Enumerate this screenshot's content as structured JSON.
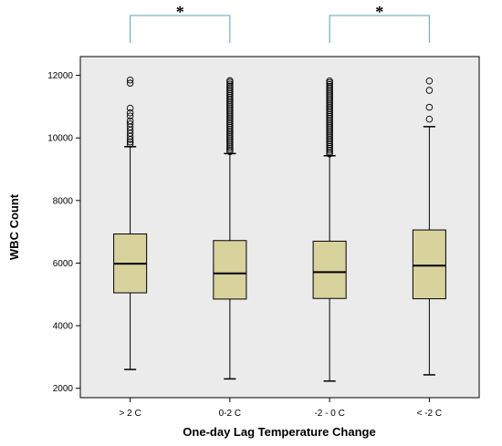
{
  "chart_data": {
    "type": "boxplot",
    "xlabel": "One-day Lag Temperature Change",
    "ylabel": "WBC Count",
    "ylim": [
      1700,
      12600
    ],
    "yticks": [
      2000,
      4000,
      6000,
      8000,
      10000,
      12000
    ],
    "ytick_labels": [
      "2000",
      "4000",
      "6000",
      "8000",
      "10000",
      "12000"
    ],
    "categories": [
      "> 2 C",
      "0-2 C",
      "-2 - 0 C",
      "< -2 C"
    ],
    "boxes": [
      {
        "category": "> 2 C",
        "whisker_low": 2600,
        "q1": 5050,
        "median": 5980,
        "q3": 6930,
        "whisker_high": 9720,
        "outliers": [
          9800,
          9870,
          9950,
          10050,
          10150,
          10250,
          10350,
          10450,
          10550,
          10700,
          10800,
          10950,
          11750,
          11850
        ]
      },
      {
        "category": "0-2 C",
        "whisker_low": 2300,
        "q1": 4850,
        "median": 5670,
        "q3": 6720,
        "whisker_high": 9500,
        "outliers": [
          9560,
          9620,
          9680,
          9740,
          9800,
          9860,
          9920,
          9980,
          10040,
          10100,
          10160,
          10220,
          10280,
          10340,
          10400,
          10460,
          10520,
          10580,
          10640,
          10700,
          10760,
          10820,
          10880,
          10940,
          11000,
          11060,
          11120,
          11180,
          11240,
          11300,
          11360,
          11420,
          11480,
          11540,
          11600,
          11660,
          11720,
          11780,
          11830
        ]
      },
      {
        "category": "-2 - 0 C",
        "whisker_low": 2230,
        "q1": 4870,
        "median": 5710,
        "q3": 6700,
        "whisker_high": 9430,
        "outliers": [
          9490,
          9550,
          9610,
          9670,
          9730,
          9790,
          9850,
          9910,
          9970,
          10030,
          10090,
          10150,
          10210,
          10270,
          10330,
          10390,
          10450,
          10510,
          10570,
          10630,
          10690,
          10750,
          10810,
          10870,
          10930,
          10990,
          11050,
          11110,
          11170,
          11230,
          11290,
          11350,
          11410,
          11470,
          11530,
          11590,
          11650,
          11710,
          11770,
          11820
        ]
      },
      {
        "category": "< -2 C",
        "whisker_low": 2430,
        "q1": 4860,
        "median": 5920,
        "q3": 7060,
        "whisker_high": 10360,
        "outliers": [
          10600,
          10980,
          11520,
          11820
        ]
      }
    ],
    "significance": [
      {
        "from": "> 2 C",
        "to": "0-2 C",
        "label": "*"
      },
      {
        "from": "-2 - 0 C",
        "to": "< -2 C",
        "label": "*"
      }
    ],
    "plot_background": "#ebebeb",
    "box_fill": "#d8d29d",
    "bracket_color": "#5aa0b5",
    "grid": false
  }
}
